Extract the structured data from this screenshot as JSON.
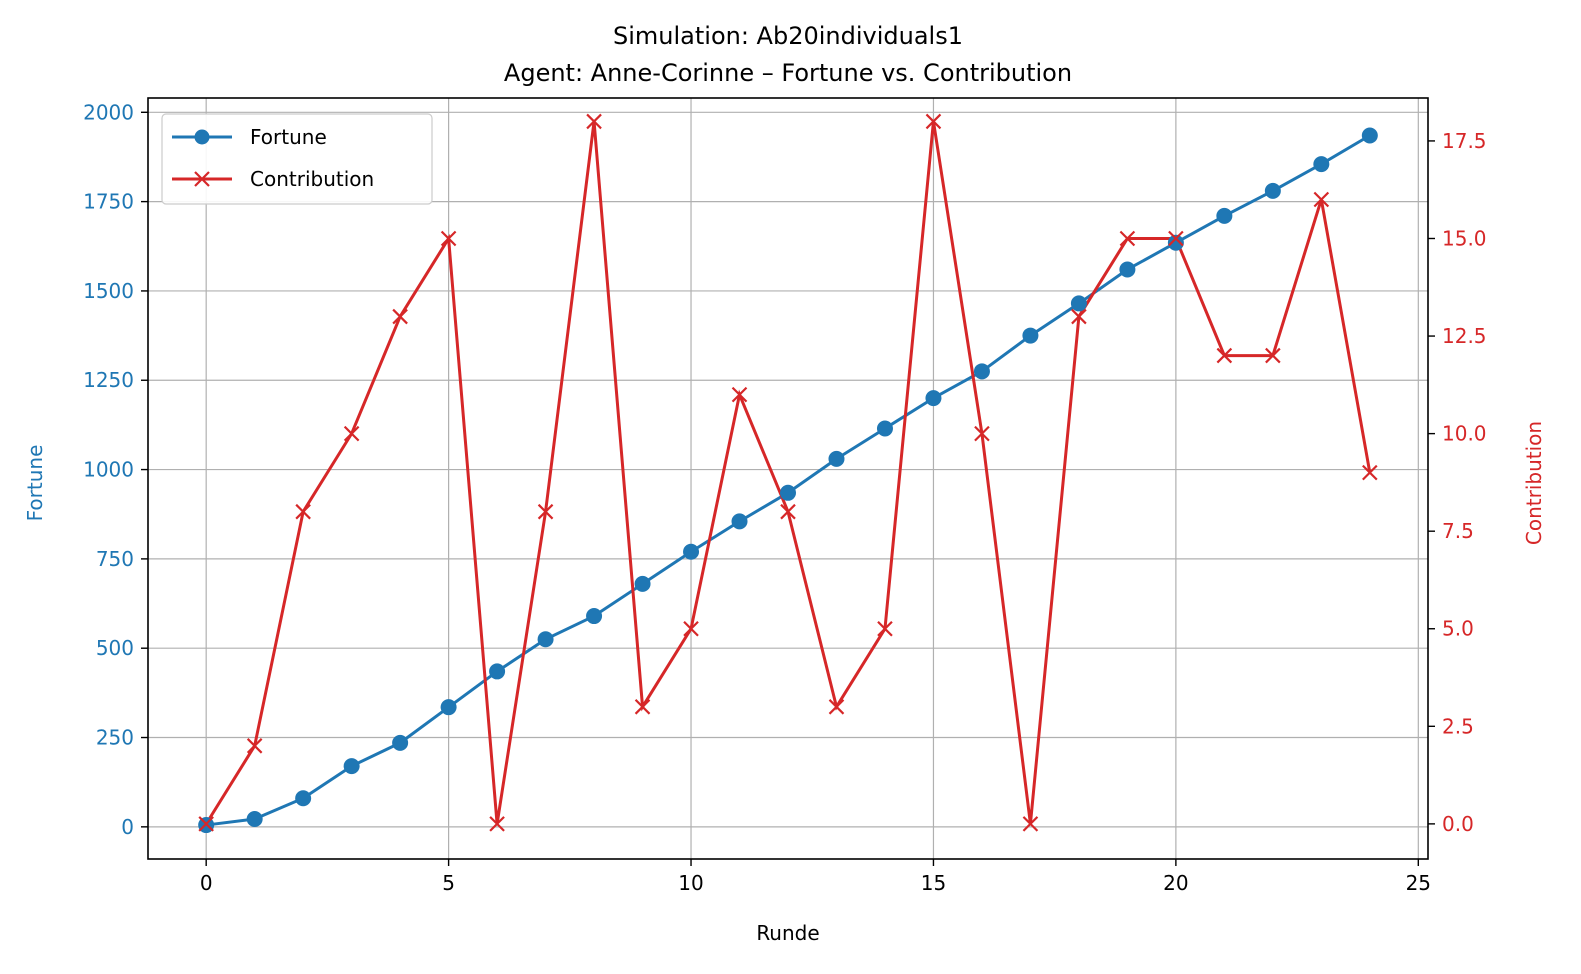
{
  "chart_data": {
    "type": "line",
    "title_line1": "Simulation: Ab20individuals1",
    "title_line2": "Agent: Anne-Corinne – Fortune vs. Contribution",
    "xlabel": "Runde",
    "ylabel_left": "Fortune",
    "ylabel_right": "Contribution",
    "xlim": [
      -1.2,
      25.2
    ],
    "ylim_left": [
      -90,
      2040
    ],
    "ylim_right": [
      -0.9,
      18.6
    ],
    "x_ticks": [
      0,
      5,
      10,
      15,
      20,
      25
    ],
    "y_ticks_left": [
      0,
      250,
      500,
      750,
      1000,
      1250,
      1500,
      1750,
      2000
    ],
    "y_ticks_right": [
      "0.0",
      "2.5",
      "5.0",
      "7.5",
      "10.0",
      "12.5",
      "15.0",
      "17.5"
    ],
    "grid": true,
    "legend_position": "upper-left",
    "colors": {
      "fortune": "#1f77b4",
      "contribution": "#d62728"
    },
    "x": [
      0,
      1,
      2,
      3,
      4,
      5,
      6,
      7,
      8,
      9,
      10,
      11,
      12,
      13,
      14,
      15,
      16,
      17,
      18,
      19,
      20,
      21,
      22,
      23,
      24
    ],
    "series": [
      {
        "name": "Fortune",
        "axis": "left",
        "marker": "circle",
        "values": [
          5,
          22,
          80,
          170,
          235,
          335,
          435,
          525,
          590,
          680,
          770,
          855,
          935,
          1030,
          1115,
          1200,
          1275,
          1375,
          1465,
          1560,
          1635,
          1710,
          1780,
          1855,
          1935
        ]
      },
      {
        "name": "Contribution",
        "axis": "right",
        "marker": "x",
        "values": [
          0,
          2,
          8,
          10,
          13,
          15,
          0,
          8,
          18,
          3,
          5,
          11,
          8,
          3,
          5,
          18,
          10,
          0,
          13,
          15,
          15,
          12,
          12,
          16,
          9
        ]
      }
    ]
  }
}
